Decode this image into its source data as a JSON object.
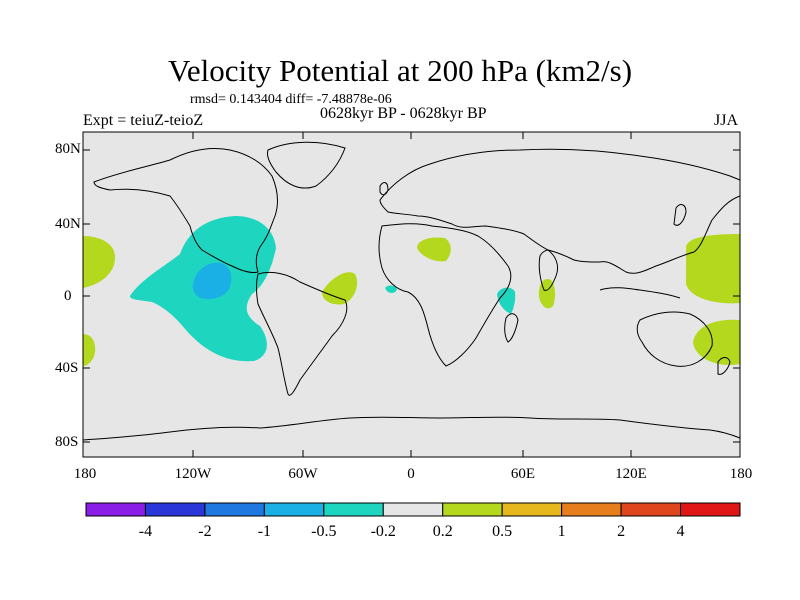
{
  "title": "Velocity Potential at 200 hPa (km2/s)",
  "stats": "rmsd= 0.143404 diff= -7.48878e-06",
  "experiment": "Expt = teiuZ-teioZ",
  "period": "0628kyr BP - 0628kyr BP",
  "season": "JJA",
  "lat_ticks": [
    "80N",
    "40N",
    "0",
    "40S",
    "80S"
  ],
  "lon_ticks": [
    "180",
    "120W",
    "60W",
    "0",
    "60E",
    "120E",
    "180"
  ],
  "colorbar": {
    "colors": [
      "#8a1ee6",
      "#2a36d8",
      "#1e78e0",
      "#1ab0e6",
      "#1ed6c0",
      "#e6e6e6",
      "#b4d81e",
      "#e6b81e",
      "#e67e1e",
      "#e0461e",
      "#e01616"
    ],
    "labels": [
      "-4",
      "-2",
      "-1",
      "-0.5",
      "-0.2",
      "0.2",
      "0.5",
      "1",
      "2",
      "4"
    ]
  },
  "map": {
    "background": "#e6e6e6",
    "positive_color": "#b4d81e",
    "negative_color": "#1ed6c0",
    "strong_negative_color": "#1ab0e6"
  }
}
